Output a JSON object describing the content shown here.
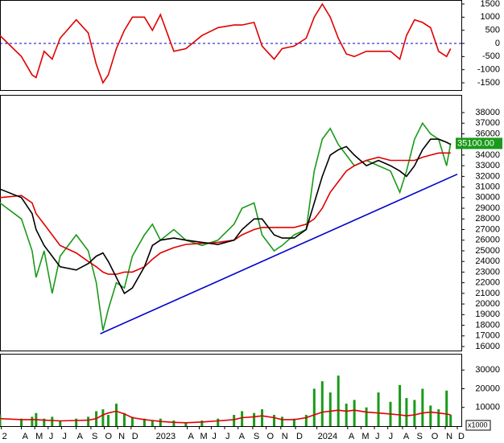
{
  "chart_data": [
    {
      "type": "line",
      "x": [
        1.6,
        3.2,
        4.0,
        4.3,
        4.9,
        5.5,
        6.1,
        7.3,
        8.2,
        8.8,
        9.3,
        9.7,
        10.3,
        10.9,
        11.5,
        12.4,
        13.0,
        13.6,
        14.6,
        15.5,
        16.7,
        17.9,
        19.1,
        19.7,
        20.6,
        21.2,
        22.1,
        22.7,
        23.6,
        24.5,
        25.1,
        25.7,
        26.3,
        26.9,
        27.5,
        28.1,
        29.0,
        29.9,
        30.8,
        31.5,
        32.0,
        32.6,
        33.2,
        33.8,
        34.4,
        35.0,
        35.3
      ],
      "xlim": [
        1.6,
        36.1
      ],
      "series": [
        {
          "color": "#e00000",
          "values": [
            300,
            -500,
            -1200,
            -1300,
            -300,
            -600,
            200,
            900,
            400,
            -800,
            -1500,
            -1200,
            -200,
            500,
            1000,
            1000,
            500,
            1100,
            -300,
            -200,
            300,
            600,
            700,
            700,
            800,
            -100,
            -600,
            -200,
            -100,
            200,
            1000,
            1500,
            1000,
            200,
            -400,
            -500,
            -300,
            -300,
            -300,
            -600,
            300,
            900,
            800,
            600,
            -300,
            -500,
            -200
          ]
        }
      ],
      "ylim": [
        -1775,
        1653
      ],
      "yticks": [
        -1500,
        -1000,
        -500,
        0,
        500,
        1000,
        1500
      ],
      "reference_line": 0,
      "reference_color": "#0000cc"
    },
    {
      "type": "line",
      "x": [
        1.6,
        3.2,
        4.0,
        4.3,
        4.9,
        5.5,
        6.1,
        7.3,
        8.2,
        8.8,
        9.3,
        9.7,
        10.3,
        10.9,
        11.5,
        12.4,
        13.0,
        13.6,
        14.6,
        15.5,
        16.7,
        17.9,
        19.1,
        19.7,
        20.6,
        21.2,
        22.1,
        22.7,
        23.6,
        24.5,
        25.1,
        25.7,
        26.3,
        26.9,
        27.5,
        28.1,
        29.0,
        29.9,
        30.8,
        31.5,
        32.0,
        32.6,
        33.2,
        33.8,
        34.4,
        35.0,
        35.3
      ],
      "xlim": [
        1.6,
        36.1
      ],
      "series": [
        {
          "color": "#1a9a1a",
          "values": [
            29500,
            28000,
            25000,
            22500,
            25000,
            21000,
            24500,
            26500,
            25000,
            22000,
            17500,
            19500,
            22000,
            21500,
            24500,
            26500,
            27500,
            26000,
            27000,
            26000,
            25500,
            26000,
            27500,
            29000,
            29500,
            26500,
            25000,
            25500,
            26500,
            27000,
            32500,
            35500,
            36500,
            35000,
            34000,
            33000,
            33500,
            33000,
            32500,
            30500,
            32500,
            35500,
            37000,
            36000,
            35500,
            33000,
            35100
          ]
        },
        {
          "color": "#e00000",
          "values": [
            30000,
            30200,
            29500,
            28500,
            27500,
            26500,
            25500,
            24800,
            24000,
            23500,
            23000,
            22800,
            22800,
            23000,
            23000,
            23500,
            24200,
            24800,
            25300,
            25600,
            25700,
            25800,
            26000,
            26500,
            27000,
            27200,
            27200,
            27200,
            27200,
            27500,
            28000,
            29000,
            30500,
            31500,
            32500,
            33000,
            33500,
            33800,
            33500,
            33500,
            33500,
            33500,
            33800,
            34000,
            34200,
            34200,
            34200
          ]
        },
        {
          "color": "#000000",
          "values": [
            30800,
            30000,
            28500,
            27000,
            25500,
            24500,
            23500,
            23200,
            23800,
            24500,
            24800,
            24000,
            22500,
            21000,
            21500,
            23500,
            25500,
            26000,
            26200,
            26000,
            25800,
            25600,
            26000,
            27000,
            28000,
            28000,
            26500,
            26200,
            26200,
            27000,
            29500,
            32000,
            34000,
            34500,
            34800,
            34000,
            33000,
            33500,
            33000,
            32500,
            32000,
            33000,
            34500,
            35500,
            35500,
            35200,
            35000
          ]
        },
        {
          "color": "#0000cc",
          "x": [
            9.1,
            35.8
          ],
          "values": [
            17200,
            32200
          ]
        }
      ],
      "ylim": [
        15622,
        39663
      ],
      "yticks": [
        16000,
        17000,
        18000,
        19000,
        20000,
        21000,
        22000,
        23000,
        24000,
        25000,
        26000,
        27000,
        28000,
        29000,
        30000,
        31000,
        32000,
        33000,
        34000,
        35000,
        36000,
        37000,
        38000
      ],
      "last_label": {
        "value": 35100,
        "label": "35100.00"
      }
    },
    {
      "type": "bar",
      "x": [
        1.6,
        3.2,
        4.0,
        4.3,
        4.9,
        5.5,
        6.1,
        7.3,
        8.2,
        8.8,
        9.3,
        9.7,
        10.3,
        10.9,
        11.5,
        12.4,
        13.0,
        13.6,
        14.6,
        15.5,
        16.7,
        17.9,
        19.1,
        19.7,
        20.6,
        21.2,
        22.1,
        22.7,
        23.6,
        24.5,
        25.1,
        25.7,
        26.3,
        26.9,
        27.5,
        28.1,
        29.0,
        29.9,
        30.8,
        31.5,
        32.0,
        32.6,
        33.2,
        33.8,
        34.4,
        35.0,
        35.3
      ],
      "xlim": [
        1.6,
        36.1
      ],
      "series": [
        {
          "kind": "bar",
          "color": "#1a9a1a",
          "values": [
            6000,
            4000,
            5000,
            7000,
            4000,
            5000,
            3000,
            4000,
            5000,
            8000,
            9000,
            6000,
            12000,
            7000,
            5000,
            4000,
            3000,
            4000,
            3000,
            2000,
            3000,
            4000,
            6000,
            8000,
            7000,
            9000,
            6000,
            5000,
            4000,
            6000,
            20000,
            24000,
            18000,
            27000,
            12000,
            14000,
            10000,
            18000,
            13000,
            22000,
            15000,
            14000,
            20000,
            11000,
            9000,
            19000,
            6000
          ]
        },
        {
          "kind": "line",
          "color": "#e00000",
          "values": [
            4000,
            3500,
            3500,
            3500,
            3200,
            3000,
            2800,
            3000,
            3200,
            4000,
            6000,
            7000,
            8000,
            6500,
            4500,
            3500,
            3000,
            2500,
            2000,
            1800,
            2200,
            2800,
            3500,
            4500,
            5000,
            5500,
            4500,
            3500,
            3500,
            4500,
            6000,
            7500,
            8000,
            8500,
            8000,
            8500,
            7500,
            7000,
            6500,
            6000,
            5500,
            6000,
            7000,
            7500,
            7000,
            6500,
            6000
          ]
        }
      ],
      "ylim": [
        0,
        38700
      ],
      "yticks": [
        10000,
        20000,
        30000
      ],
      "unit_label": "x1000",
      "xticks": [
        {
          "value": 1.7,
          "label": "2"
        },
        {
          "value": 3.2,
          "label": "A"
        },
        {
          "value": 4.2,
          "label": "M"
        },
        {
          "value": 5.2,
          "label": "J"
        },
        {
          "value": 6.2,
          "label": "J"
        },
        {
          "value": 7.3,
          "label": "A"
        },
        {
          "value": 8.4,
          "label": "S"
        },
        {
          "value": 9.4,
          "label": "O"
        },
        {
          "value": 10.4,
          "label": "N"
        },
        {
          "value": 11.4,
          "label": "D"
        },
        {
          "value": 13.2,
          "label": "2023"
        },
        {
          "value": 15.6,
          "label": "A"
        },
        {
          "value": 16.5,
          "label": "M"
        },
        {
          "value": 17.4,
          "label": "J"
        },
        {
          "value": 18.4,
          "label": "J"
        },
        {
          "value": 19.4,
          "label": "A"
        },
        {
          "value": 20.5,
          "label": "S"
        },
        {
          "value": 21.5,
          "label": "O"
        },
        {
          "value": 22.6,
          "label": "N"
        },
        {
          "value": 23.7,
          "label": "D"
        },
        {
          "value": 25.3,
          "label": "2024"
        },
        {
          "value": 27.6,
          "label": "A"
        },
        {
          "value": 28.6,
          "label": "M"
        },
        {
          "value": 29.6,
          "label": "J"
        },
        {
          "value": 30.6,
          "label": "J"
        },
        {
          "value": 31.7,
          "label": "A"
        },
        {
          "value": 32.7,
          "label": "S"
        },
        {
          "value": 33.8,
          "label": "O"
        },
        {
          "value": 34.9,
          "label": "N"
        },
        {
          "value": 35.8,
          "label": "D"
        }
      ]
    }
  ]
}
